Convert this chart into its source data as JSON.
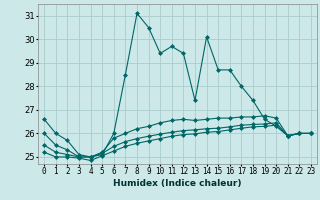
{
  "title": "",
  "xlabel": "Humidex (Indice chaleur)",
  "x": [
    0,
    1,
    2,
    3,
    4,
    5,
    6,
    7,
    8,
    9,
    10,
    11,
    12,
    13,
    14,
    15,
    16,
    17,
    18,
    19,
    20,
    21,
    22,
    23
  ],
  "series": [
    [
      26.6,
      26.0,
      25.7,
      25.1,
      25.0,
      25.1,
      26.0,
      28.5,
      31.1,
      30.5,
      29.4,
      29.7,
      29.4,
      27.4,
      30.1,
      28.7,
      28.7,
      28.0,
      27.4,
      26.6,
      26.3,
      25.9,
      26.0,
      26.0
    ],
    [
      26.0,
      25.5,
      25.3,
      25.0,
      25.0,
      25.2,
      25.8,
      26.0,
      26.2,
      26.3,
      26.45,
      26.55,
      26.6,
      26.55,
      26.6,
      26.65,
      26.65,
      26.7,
      26.7,
      26.75,
      26.65,
      25.9,
      26.0,
      26.0
    ],
    [
      25.5,
      25.2,
      25.1,
      25.0,
      25.0,
      25.15,
      25.45,
      25.65,
      25.78,
      25.88,
      25.97,
      26.05,
      26.12,
      26.15,
      26.2,
      26.22,
      26.28,
      26.35,
      26.38,
      26.4,
      26.45,
      25.9,
      26.0,
      26.0
    ],
    [
      25.2,
      25.0,
      25.0,
      24.95,
      24.85,
      25.05,
      25.25,
      25.45,
      25.58,
      25.68,
      25.78,
      25.88,
      25.95,
      25.98,
      26.05,
      26.08,
      26.15,
      26.22,
      26.28,
      26.3,
      26.35,
      25.9,
      26.0,
      26.0
    ]
  ],
  "line_color": "#006666",
  "bg_color": "#cce8e8",
  "grid_color": "#aacccc",
  "xlim": [
    -0.5,
    23.5
  ],
  "ylim": [
    24.7,
    31.5
  ],
  "yticks": [
    25,
    26,
    27,
    28,
    29,
    30,
    31
  ],
  "xtick_labels": [
    "0",
    "1",
    "2",
    "3",
    "4",
    "5",
    "6",
    "7",
    "8",
    "9",
    "10",
    "11",
    "12",
    "13",
    "14",
    "15",
    "16",
    "17",
    "18",
    "19",
    "20",
    "21",
    "22",
    "23"
  ],
  "marker": "D",
  "markersize": 2,
  "linewidth": 0.8,
  "xlabel_fontsize": 6.5,
  "tick_fontsize": 5.5
}
